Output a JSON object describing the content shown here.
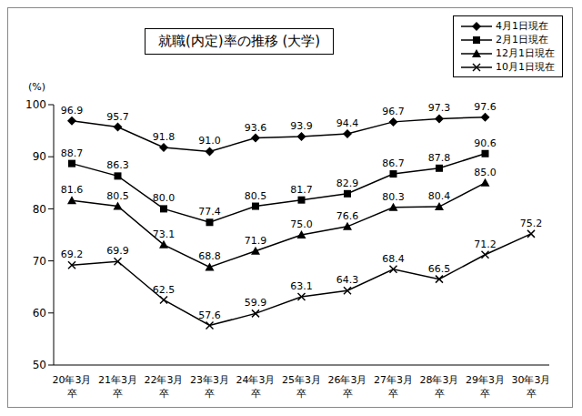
{
  "chart_data": {
    "type": "line",
    "title": "就職(内定)率の推移 (大学)",
    "y_label": "(%)",
    "categories": [
      "20年3月卒",
      "21年3月卒",
      "22年3月卒",
      "23年3月卒",
      "24年3月卒",
      "25年3月卒",
      "26年3月卒",
      "27年3月卒",
      "28年3月卒",
      "29年3月卒",
      "30年3月卒"
    ],
    "ylim": [
      50,
      100
    ],
    "yticks": [
      50,
      60,
      70,
      80,
      90,
      100
    ],
    "grid": false,
    "legend": "upper right",
    "data_labels": true,
    "series": [
      {
        "name": "4月1日現在",
        "color": "#000000",
        "marker": "diamond",
        "values": [
          96.9,
          95.7,
          91.8,
          91.0,
          93.6,
          93.9,
          94.4,
          96.7,
          97.3,
          97.6,
          null
        ],
        "value_labels": [
          "96.9",
          "95.7",
          "91.8",
          "91.0",
          "93.6",
          "93.9",
          "94.4",
          "96.7",
          "97.3",
          "97.6",
          null
        ]
      },
      {
        "name": "2月1日現在",
        "color": "#000000",
        "marker": "square",
        "values": [
          88.7,
          86.3,
          80.0,
          77.4,
          80.5,
          81.7,
          82.9,
          86.7,
          87.8,
          90.6,
          null
        ],
        "value_labels": [
          "88.7",
          "86.3",
          "80.0",
          "77.4",
          "80.5",
          "81.7",
          "82.9",
          "86.7",
          "87.8",
          "90.6",
          null
        ]
      },
      {
        "name": "12月1日現在",
        "color": "#000000",
        "marker": "triangle",
        "values": [
          81.6,
          80.5,
          73.1,
          68.8,
          71.9,
          75.0,
          76.6,
          80.3,
          80.4,
          85.0,
          null
        ],
        "value_labels": [
          "81.6",
          "80.5",
          "73.1",
          "68.8",
          "71.9",
          "75.0",
          "76.6",
          "80.3",
          "80.4",
          "85.0",
          null
        ]
      },
      {
        "name": "10月1日現在",
        "color": "#000000",
        "marker": "x",
        "values": [
          69.2,
          69.9,
          62.5,
          57.6,
          59.9,
          63.1,
          64.3,
          68.4,
          66.5,
          71.2,
          75.2
        ],
        "value_labels": [
          "69.2",
          "69.9",
          "62.5",
          "57.6",
          "59.9",
          "63.1",
          "64.3",
          "68.4",
          "66.5",
          "71.2",
          "75.2"
        ]
      }
    ]
  }
}
